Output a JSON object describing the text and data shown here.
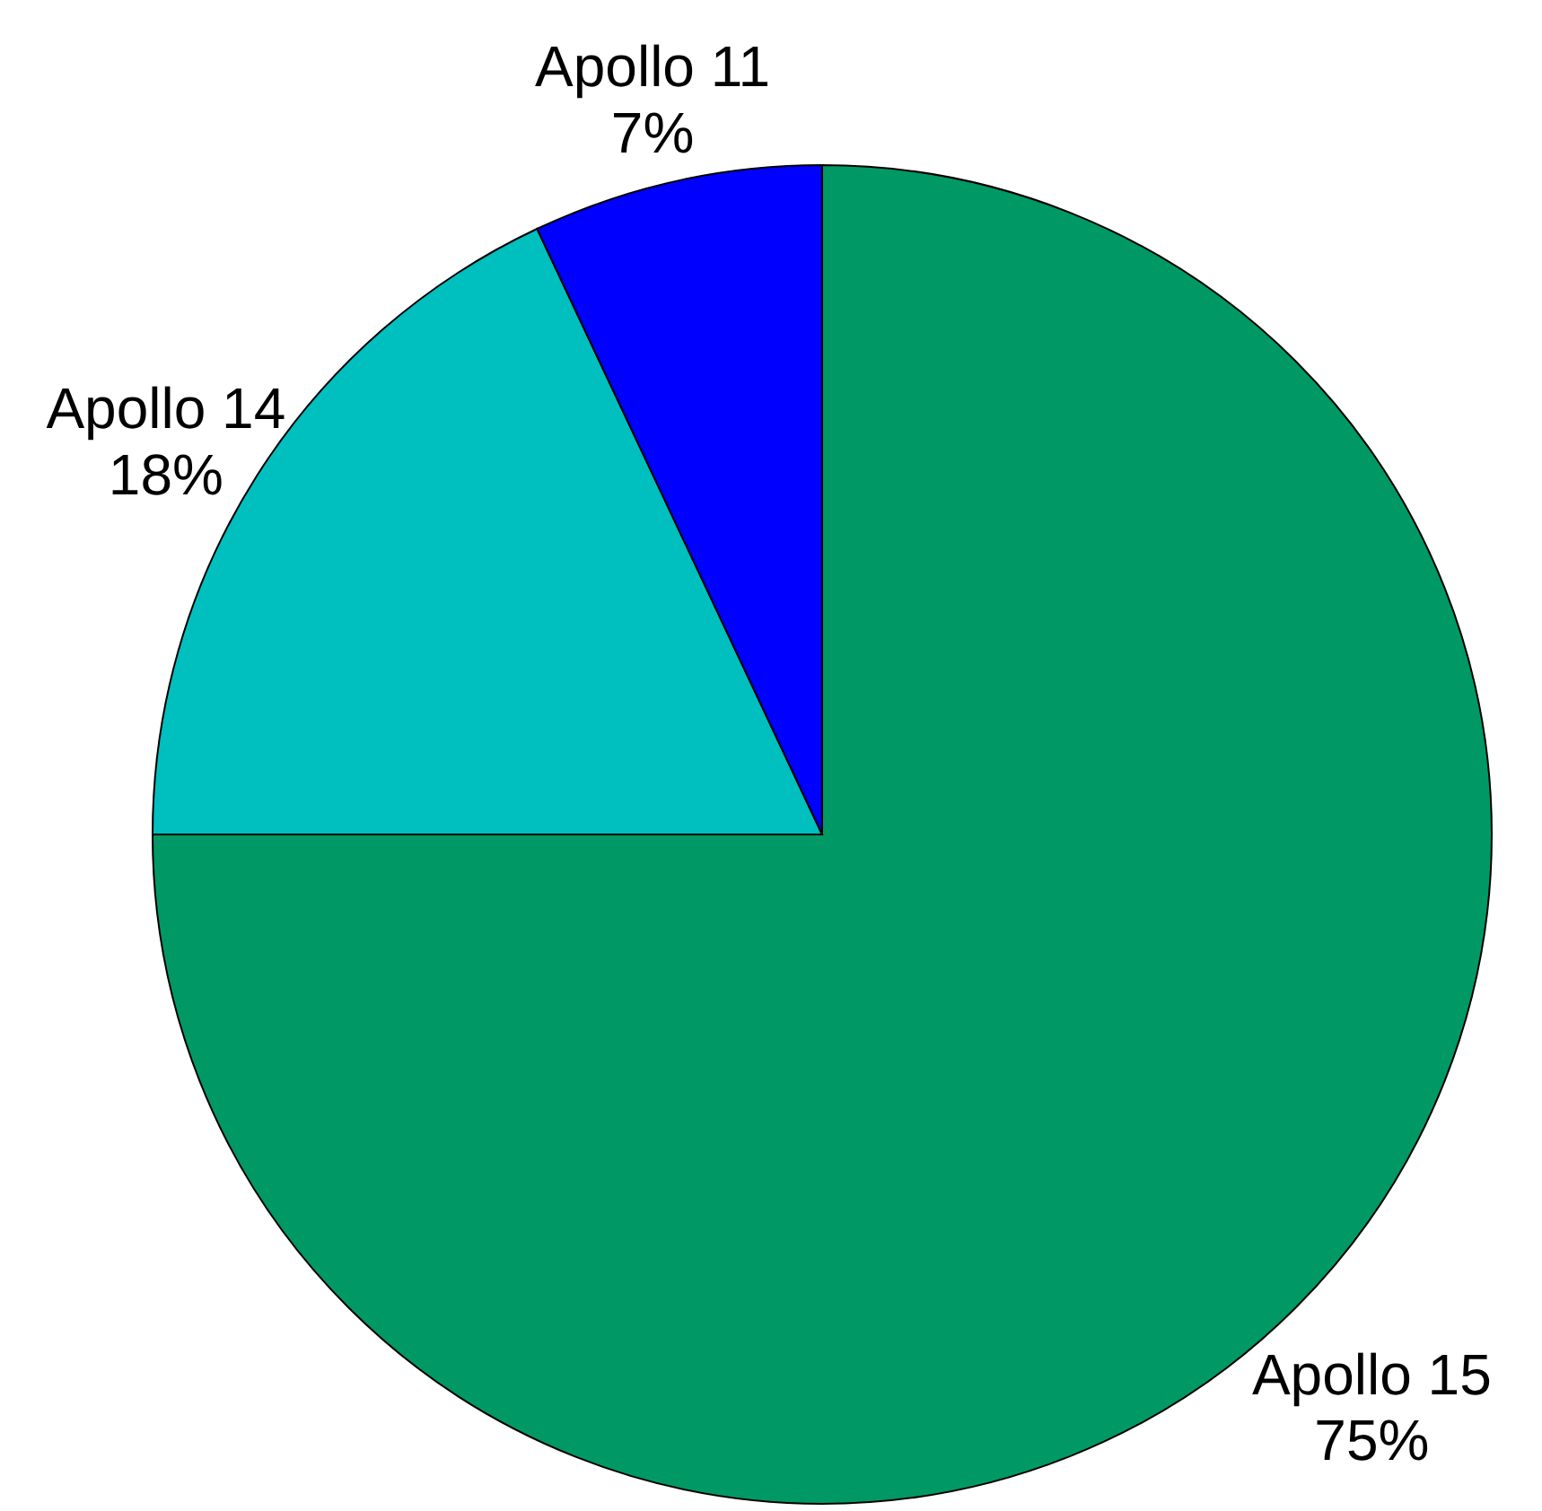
{
  "chart_data": {
    "type": "pie",
    "categories": [
      "Apollo 15",
      "Apollo 14",
      "Apollo 11"
    ],
    "values": [
      75,
      18,
      7
    ],
    "value_labels": [
      "75%",
      "18%",
      "7%"
    ],
    "colors": [
      "#009966",
      "#00bfbf",
      "#0000ff"
    ]
  }
}
